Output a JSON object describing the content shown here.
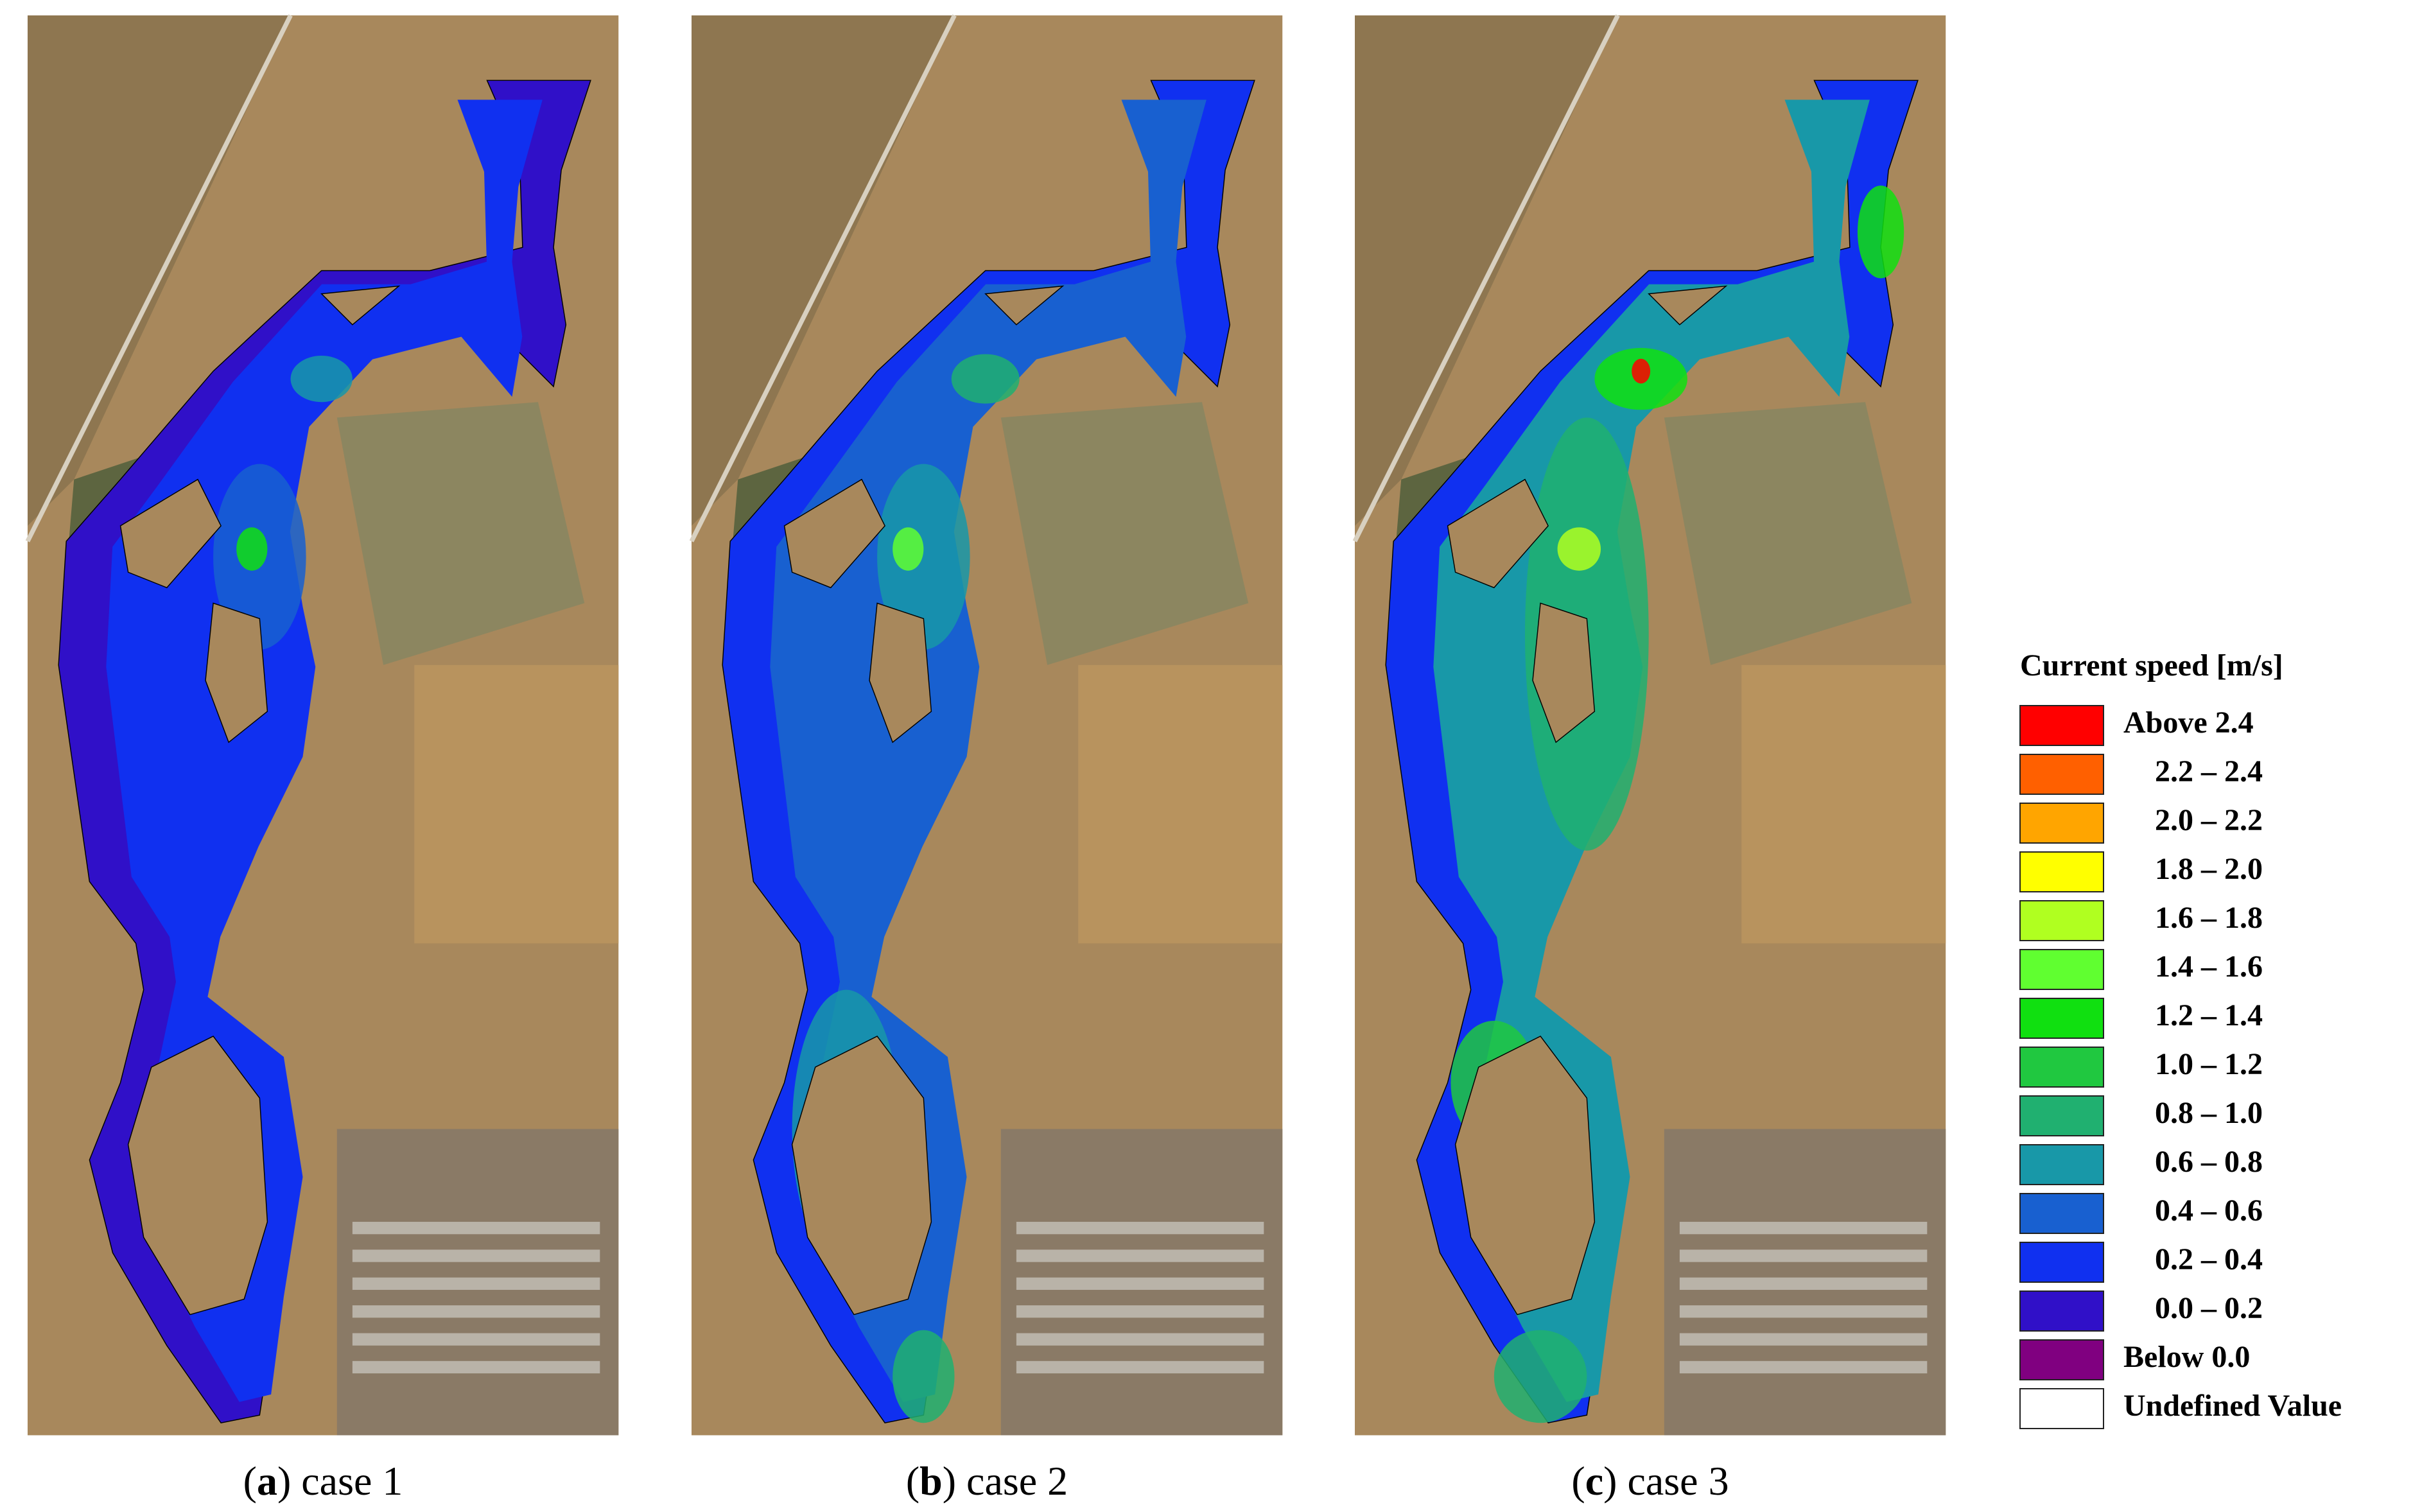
{
  "panels": [
    {
      "prefix": "(",
      "letter": "a",
      "suffix": ") case 1"
    },
    {
      "prefix": "(",
      "letter": "b",
      "suffix": ") case 2"
    },
    {
      "prefix": "(",
      "letter": "c",
      "suffix": ") case 3"
    }
  ],
  "legend": {
    "title": "Current speed [m/s]",
    "items": [
      {
        "label": "Above 2.4",
        "color": "#ff0000"
      },
      {
        "label": "2.2 – 2.4",
        "color": "#ff6000"
      },
      {
        "label": "2.0 – 2.2",
        "color": "#ffa500"
      },
      {
        "label": "1.8 – 2.0",
        "color": "#ffff00"
      },
      {
        "label": "1.6 – 1.8",
        "color": "#b0ff20"
      },
      {
        "label": "1.4 – 1.6",
        "color": "#60ff30"
      },
      {
        "label": "1.2 – 1.4",
        "color": "#10e010"
      },
      {
        "label": "1.0 – 1.2",
        "color": "#20c840"
      },
      {
        "label": "0.8 – 1.0",
        "color": "#20b070"
      },
      {
        "label": "0.6 – 0.8",
        "color": "#1898a8"
      },
      {
        "label": "0.4 – 0.6",
        "color": "#1860d0"
      },
      {
        "label": "0.2 – 0.4",
        "color": "#1030f0"
      },
      {
        "label": "0.0 – 0.2",
        "color": "#3010c8"
      },
      {
        "label": "Below 0.0",
        "color": "#800080"
      },
      {
        "label": "Undefined Value",
        "color": "#ffffff"
      }
    ]
  }
}
